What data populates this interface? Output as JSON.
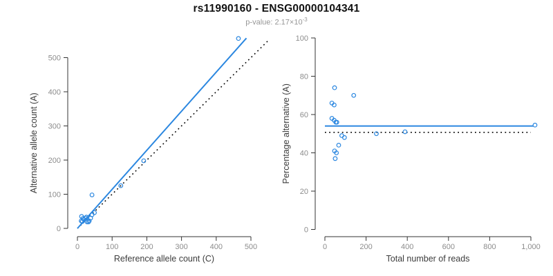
{
  "header": {
    "title": "rs11990160 - ENSG00000104341",
    "subtitle_prefix": "p-value: 2.17×10",
    "subtitle_exponent": "-3"
  },
  "colors": {
    "accent_blue": "#2b87e0",
    "identity_line": "#000000",
    "tick_label": "#8c8c8c",
    "axis_line": "#333333",
    "axis_title": "#3c3c3c",
    "title_text": "#111111",
    "subtitle_text": "#969696"
  },
  "chart_data": [
    {
      "type": "scatter",
      "name": "allele-counts",
      "xlabel": "Reference allele count (C)",
      "ylabel": "Alternative allele count (A)",
      "xlim": [
        0,
        500
      ],
      "ylim": [
        0,
        500
      ],
      "xticks": [
        0,
        100,
        200,
        300,
        400,
        500
      ],
      "xtick_labels": [
        "0",
        "100",
        "200",
        "300",
        "400",
        "500"
      ],
      "yticks": [
        0,
        100,
        200,
        300,
        400,
        500
      ],
      "ytick_labels": [
        "0",
        "100",
        "200",
        "300",
        "400",
        "500"
      ],
      "grid": false,
      "points": [
        [
          12,
          35
        ],
        [
          42,
          98
        ],
        [
          11,
          22
        ],
        [
          16,
          29
        ],
        [
          14,
          20
        ],
        [
          19,
          26
        ],
        [
          23,
          30
        ],
        [
          26,
          33
        ],
        [
          38,
          30
        ],
        [
          42,
          40
        ],
        [
          49,
          46
        ],
        [
          28,
          19
        ],
        [
          34,
          22
        ],
        [
          32,
          19
        ],
        [
          125,
          125
        ],
        [
          191,
          198
        ],
        [
          464,
          556
        ]
      ],
      "lines": [
        {
          "name": "regression-line",
          "style": "solid",
          "color": "accent_blue",
          "width": 2,
          "points": [
            [
              0,
              0
            ],
            [
              487,
              557
            ]
          ]
        },
        {
          "name": "identity-line",
          "style": "dotted",
          "color": "identity_line",
          "width": 1.6,
          "points": [
            [
              0,
              0
            ],
            [
              553,
              553
            ]
          ]
        }
      ]
    },
    {
      "type": "scatter",
      "name": "percentage-vs-reads",
      "xlabel": "Total number of reads",
      "ylabel": "Percentage alternative (A)",
      "xlim": [
        0,
        1000
      ],
      "ylim": [
        0,
        100
      ],
      "xticks": [
        0,
        200,
        400,
        600,
        800,
        1000
      ],
      "xtick_labels": [
        "0",
        "200",
        "400",
        "600",
        "800",
        "1,000"
      ],
      "yticks": [
        0,
        20,
        40,
        60,
        80,
        100
      ],
      "ytick_labels": [
        "0",
        "20",
        "40",
        "60",
        "80",
        "100"
      ],
      "grid": false,
      "points": [
        [
          47,
          74
        ],
        [
          140,
          70
        ],
        [
          34,
          66
        ],
        [
          45,
          65
        ],
        [
          34,
          58
        ],
        [
          45,
          57
        ],
        [
          53,
          56
        ],
        [
          58,
          56
        ],
        [
          67,
          44
        ],
        [
          82,
          49
        ],
        [
          95,
          48
        ],
        [
          47,
          41
        ],
        [
          56,
          40
        ],
        [
          50,
          37
        ],
        [
          250,
          50
        ],
        [
          389,
          51
        ],
        [
          1020,
          54.5
        ]
      ],
      "lines": [
        {
          "name": "mean-percentage-line",
          "style": "solid",
          "color": "accent_blue",
          "width": 2,
          "points": [
            [
              0,
              54
            ],
            [
              1012,
              54
            ]
          ]
        },
        {
          "name": "null-50pct-line",
          "style": "dotted",
          "color": "identity_line",
          "width": 1.6,
          "points": [
            [
              0,
              50.7
            ],
            [
              1000,
              50.7
            ]
          ]
        }
      ]
    }
  ]
}
